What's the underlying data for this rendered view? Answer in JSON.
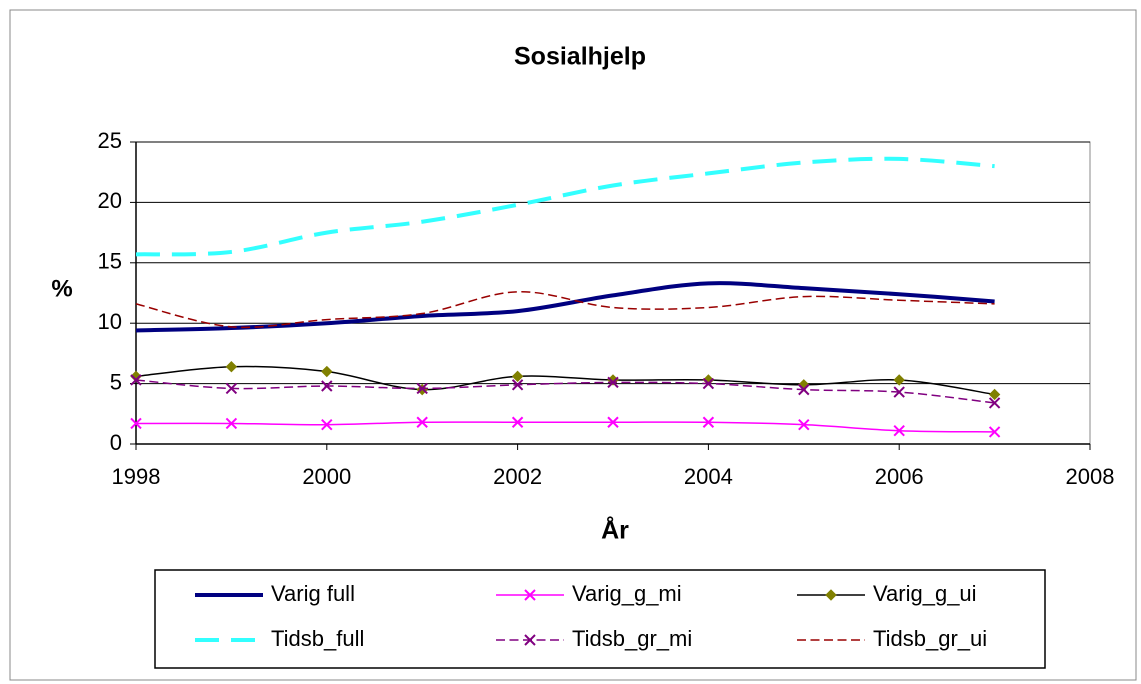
{
  "chart_data": {
    "type": "line",
    "title": "Sosialhjelp",
    "x_label": "År",
    "y_label": "%",
    "x": [
      1998,
      1999,
      2000,
      2001,
      2002,
      2003,
      2004,
      2005,
      2006,
      2007
    ],
    "series": [
      {
        "name": "Varig full",
        "color": "#000080",
        "linewidth": 4,
        "dash": false,
        "marker": "none",
        "values": [
          9.4,
          9.6,
          10.0,
          10.6,
          11.0,
          12.3,
          13.3,
          12.9,
          12.4,
          11.8
        ]
      },
      {
        "name": "Varig_g_mi",
        "color": "#ff00ff",
        "linewidth": 1.5,
        "dash": false,
        "marker": "x",
        "values": [
          1.7,
          1.7,
          1.6,
          1.8,
          1.8,
          1.8,
          1.8,
          1.6,
          1.1,
          1.0
        ]
      },
      {
        "name": "Varig_g_ui",
        "color": "#000000",
        "linewidth": 1.5,
        "dash": false,
        "marker": "diamond",
        "values": [
          5.6,
          6.4,
          6.0,
          4.5,
          5.6,
          5.3,
          5.3,
          4.9,
          5.3,
          4.1
        ]
      },
      {
        "name": "Tidsb_full",
        "color": "#33ffff",
        "linewidth": 4,
        "dash": true,
        "marker": "none",
        "values": [
          15.7,
          15.9,
          17.5,
          18.4,
          19.8,
          21.4,
          22.4,
          23.3,
          23.6,
          23.0
        ]
      },
      {
        "name": "Tidsb_gr_mi",
        "color": "#800080",
        "linewidth": 1.5,
        "dash": true,
        "marker": "x",
        "values": [
          5.3,
          4.6,
          4.8,
          4.6,
          4.9,
          5.1,
          5.0,
          4.5,
          4.3,
          3.4
        ]
      },
      {
        "name": "Tidsb_gr_ui",
        "color": "#990000",
        "linewidth": 1.5,
        "dash": true,
        "marker": "none",
        "values": [
          11.6,
          9.7,
          10.3,
          10.8,
          12.6,
          11.3,
          11.3,
          12.2,
          11.9,
          11.6
        ]
      }
    ],
    "xlim": [
      1998,
      2008
    ],
    "xticks": [
      1998,
      2000,
      2002,
      2004,
      2006,
      2008
    ],
    "ylim": [
      0,
      25
    ],
    "yticks": [
      0,
      5,
      10,
      15,
      20,
      25
    ],
    "grid": true,
    "legend": "bottom"
  }
}
